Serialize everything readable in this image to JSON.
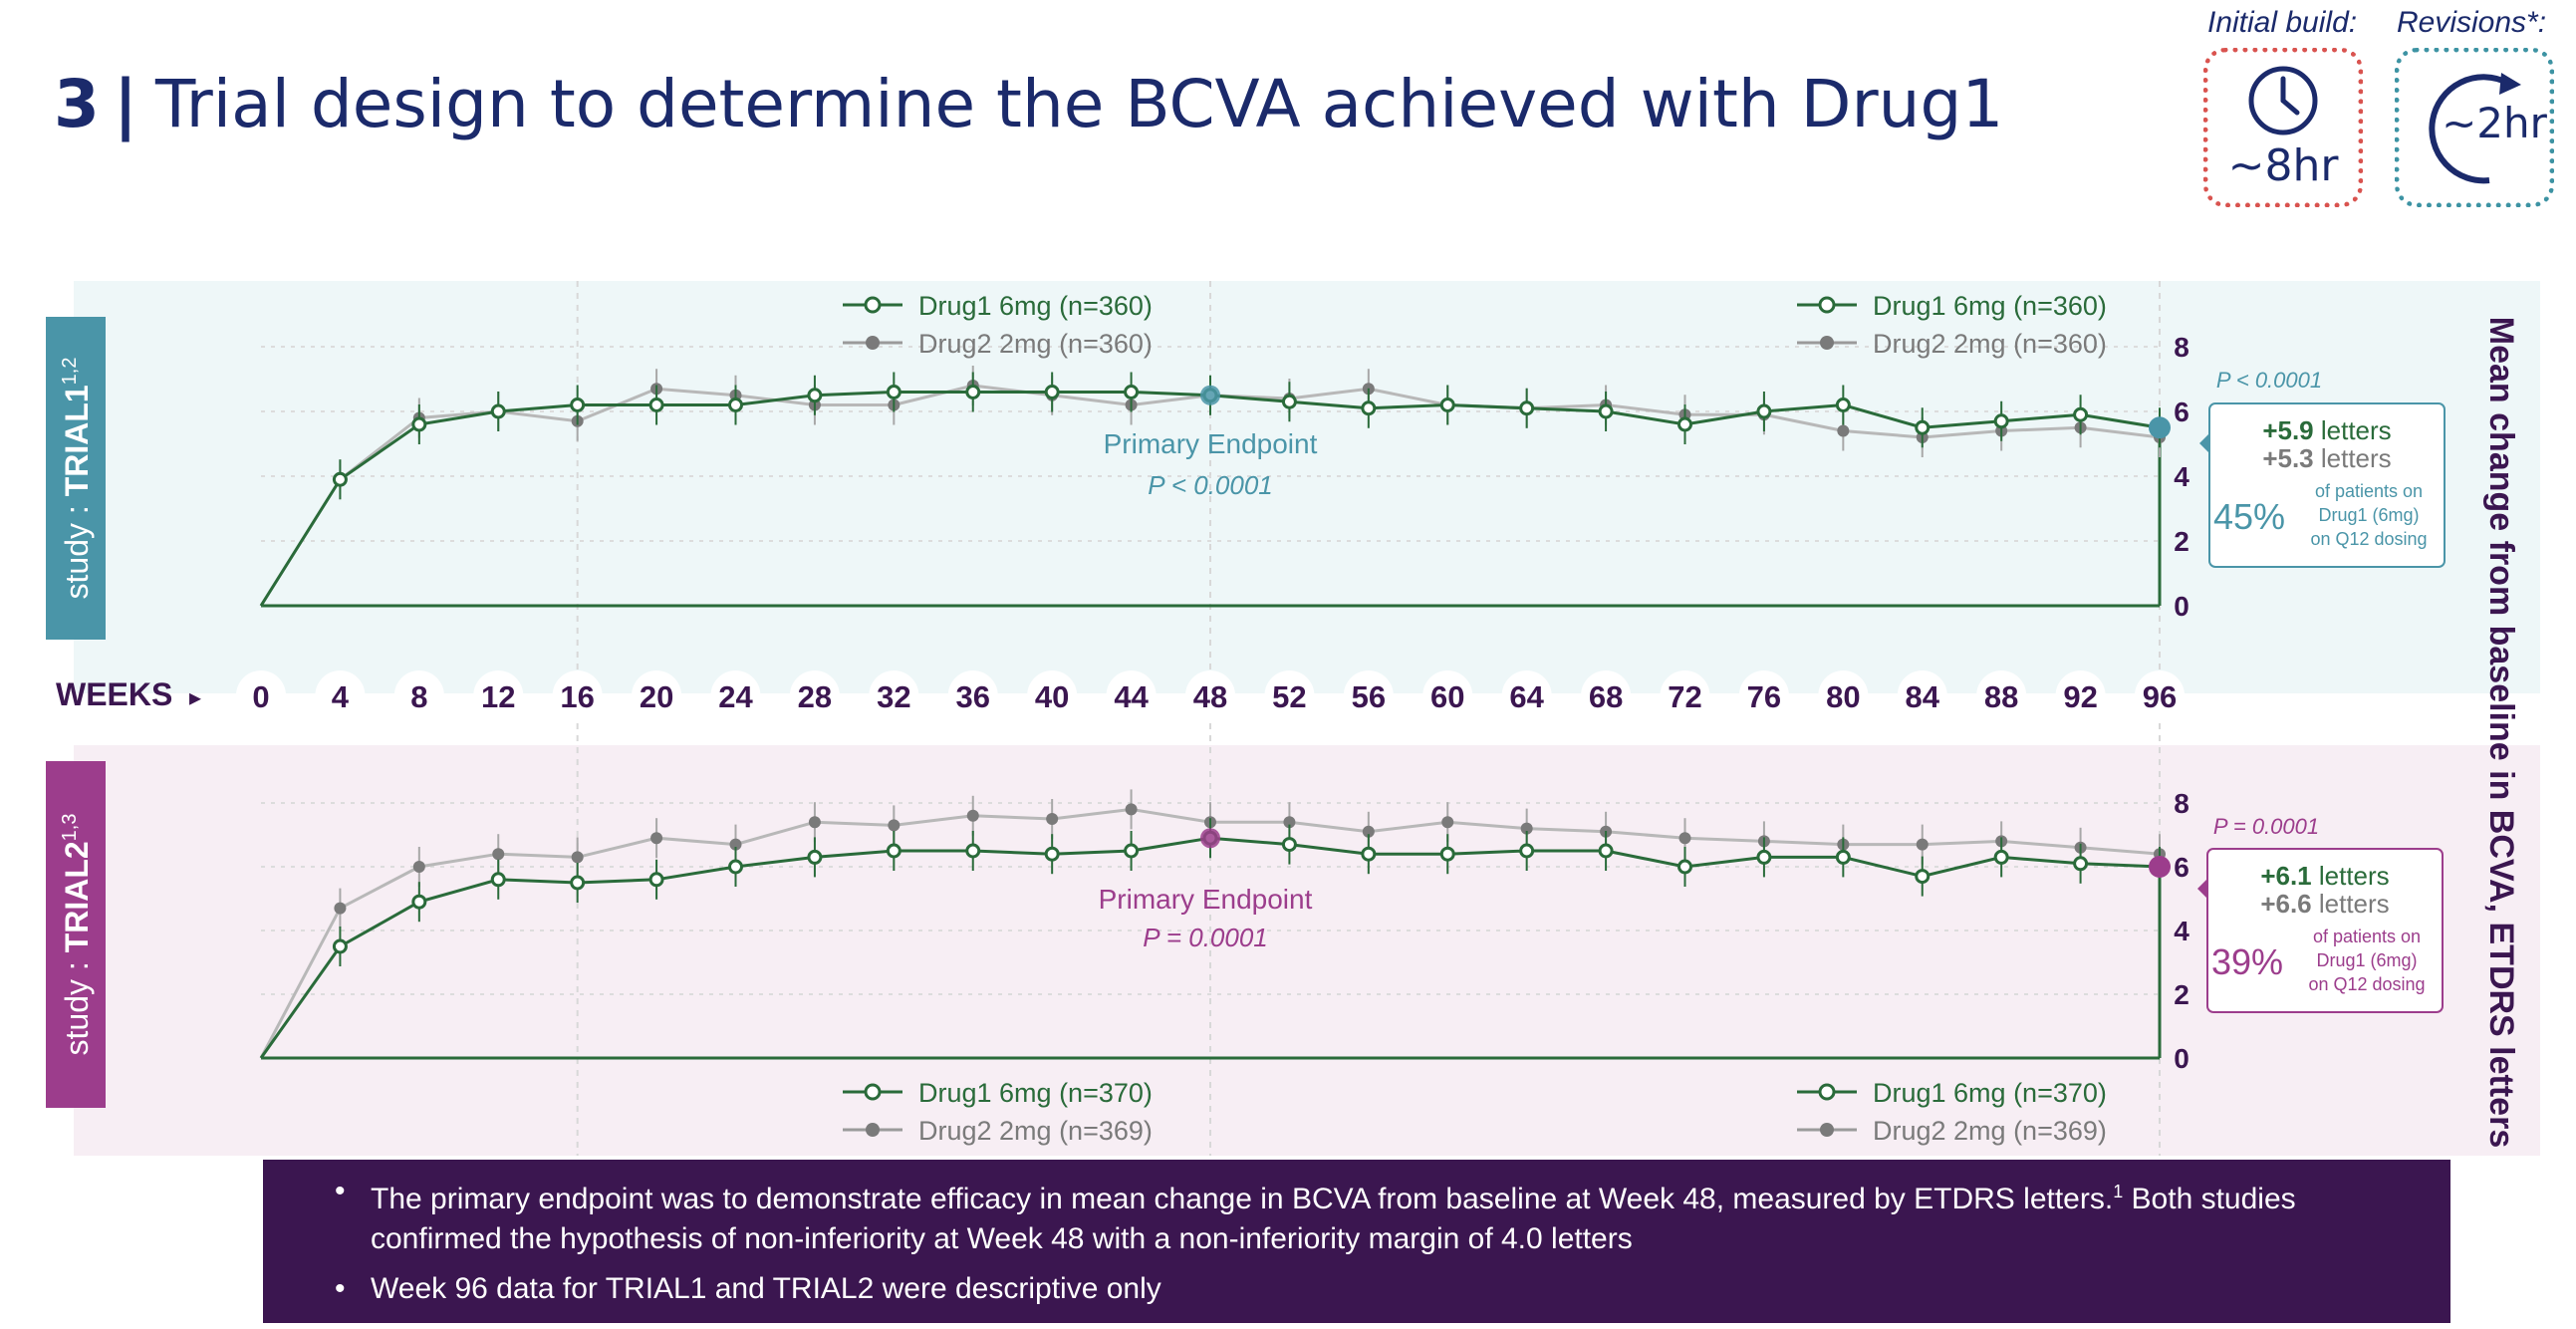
{
  "slide": {
    "number": "3",
    "separator": "|",
    "title": "Trial design to determine the BCVA achieved with Drug1"
  },
  "timing": {
    "initial_label": "Initial build:",
    "initial_value": "~8hr",
    "revisions_label": "Revisions*:",
    "revisions_value": "~2hr",
    "colors": {
      "initial": "#d9534f",
      "revisions": "#3d93a3"
    }
  },
  "footnote_bullets": {
    "b1_text": "The primary endpoint was to demonstrate efficacy in mean change in BCVA from baseline at Week 48, measured by ETDRS letters.",
    "b1_sup": "1",
    "b1_text2": " Both studies confirmed the hypothesis of non-inferiority at Week 48 with a non-inferiority margin of 4.0 letters",
    "b2_text": "Week 96 data for TRIAL1 and TRIAL2 were descriptive only"
  },
  "chart_data": {
    "type": "line",
    "weeks_label": "WEEKS",
    "weeks_arrow": "▸",
    "x": [
      0,
      4,
      8,
      12,
      16,
      20,
      24,
      28,
      32,
      36,
      40,
      44,
      48,
      52,
      56,
      60,
      64,
      68,
      72,
      76,
      80,
      84,
      88,
      92,
      96
    ],
    "right_axis_label": "Mean change from baseline in BCVA, ETDRS letters",
    "colors": {
      "drug1": "#2a6b3a",
      "drug2": "#8a8a8a",
      "trial1": "#4a95a8",
      "trial2": "#9c3d8c"
    },
    "panels": [
      {
        "study_prefix": "study : ",
        "study_name": "TRIAL1",
        "study_sup": "1,2",
        "ylim": [
          0,
          8
        ],
        "yticks": [
          "0",
          "2",
          "4",
          "6",
          "8"
        ],
        "legend_left": {
          "drug1": "Drug1 6mg (n=360)",
          "drug2": "Drug2 2mg (n=360)"
        },
        "legend_right": {
          "drug1": "Drug1 6mg (n=360)",
          "drug2": "Drug2 2mg (n=360)"
        },
        "series": [
          {
            "name": "Drug1 6mg",
            "values": [
              0,
              3.9,
              5.6,
              6.0,
              6.2,
              6.2,
              6.2,
              6.5,
              6.6,
              6.6,
              6.6,
              6.6,
              6.5,
              6.3,
              6.1,
              6.2,
              6.1,
              6.0,
              5.6,
              6.0,
              6.2,
              5.5,
              5.7,
              5.9,
              5.5
            ]
          },
          {
            "name": "Drug2 2mg",
            "values": [
              0,
              3.9,
              5.8,
              6.0,
              5.7,
              6.7,
              6.5,
              6.2,
              6.2,
              6.8,
              6.5,
              6.2,
              6.5,
              6.4,
              6.7,
              6.2,
              6.1,
              6.2,
              5.9,
              5.9,
              5.4,
              5.2,
              5.4,
              5.5,
              5.2
            ]
          }
        ],
        "primary_endpoint_label": "Primary Endpoint",
        "primary_endpoint_p": "P < 0.0001",
        "week96_p": "P < 0.0001",
        "result_drug1": "+5.9",
        "result_drug2": "+5.3",
        "result_unit": " letters",
        "pct": "45%",
        "pct_line1": "of patients on",
        "pct_line2": "Drug1 (6mg)",
        "pct_line3": "on Q12 dosing"
      },
      {
        "study_prefix": "study : ",
        "study_name": "TRIAL2",
        "study_sup": "1,3",
        "ylim": [
          0,
          8
        ],
        "yticks": [
          "0",
          "2",
          "4",
          "6",
          "8"
        ],
        "legend_left": {
          "drug1": "Drug1 6mg (n=370)",
          "drug2": "Drug2 2mg (n=369)"
        },
        "legend_right": {
          "drug1": "Drug1 6mg (n=370)",
          "drug2": "Drug2 2mg (n=369)"
        },
        "series": [
          {
            "name": "Drug1 6mg",
            "values": [
              0,
              3.5,
              4.9,
              5.6,
              5.5,
              5.6,
              6.0,
              6.3,
              6.5,
              6.5,
              6.4,
              6.5,
              6.9,
              6.7,
              6.4,
              6.4,
              6.5,
              6.5,
              6.0,
              6.3,
              6.3,
              5.7,
              6.3,
              6.1,
              6.0
            ]
          },
          {
            "name": "Drug2 2mg",
            "values": [
              0,
              4.7,
              6.0,
              6.4,
              6.3,
              6.9,
              6.7,
              7.4,
              7.3,
              7.6,
              7.5,
              7.8,
              7.4,
              7.4,
              7.1,
              7.4,
              7.2,
              7.1,
              6.9,
              6.8,
              6.7,
              6.7,
              6.8,
              6.6,
              6.4
            ]
          }
        ],
        "primary_endpoint_label": "Primary Endpoint",
        "primary_endpoint_p": "P = 0.0001",
        "week96_p": "P = 0.0001",
        "result_drug1": "+6.1",
        "result_drug2": "+6.6",
        "result_unit": " letters",
        "pct": "39%",
        "pct_line1": "of patients on",
        "pct_line2": "Drug1 (6mg)",
        "pct_line3": "on Q12 dosing"
      }
    ]
  }
}
